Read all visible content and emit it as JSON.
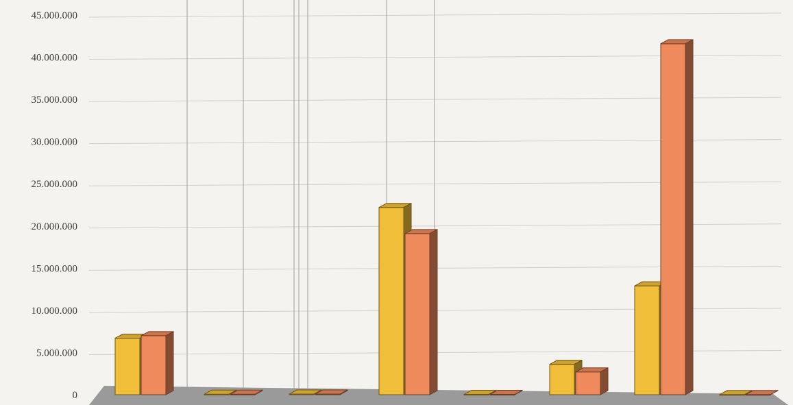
{
  "chart_data": {
    "type": "bar",
    "categories": [
      "",
      "",
      "",
      "",
      "",
      "",
      "",
      ""
    ],
    "series": [
      {
        "color": "#f1be3a",
        "values": [
          6700000,
          60000,
          80000,
          22200000,
          40000,
          3600000,
          12900000,
          20000
        ]
      },
      {
        "color": "#ef8a5c",
        "values": [
          7000000,
          60000,
          80000,
          19100000,
          40000,
          2700000,
          41600000,
          20000
        ]
      }
    ],
    "y_ticks": [
      "0",
      "5.000.000",
      "10.000.000",
      "15.000.000",
      "20.000.000",
      "25.000.000",
      "30.000.000",
      "35.000.000",
      "40.000.000",
      "45.000.000"
    ],
    "ylim": [
      0,
      45000000
    ],
    "grid": true,
    "style": "3d-bars",
    "floor_color": "#9a9a9a"
  }
}
